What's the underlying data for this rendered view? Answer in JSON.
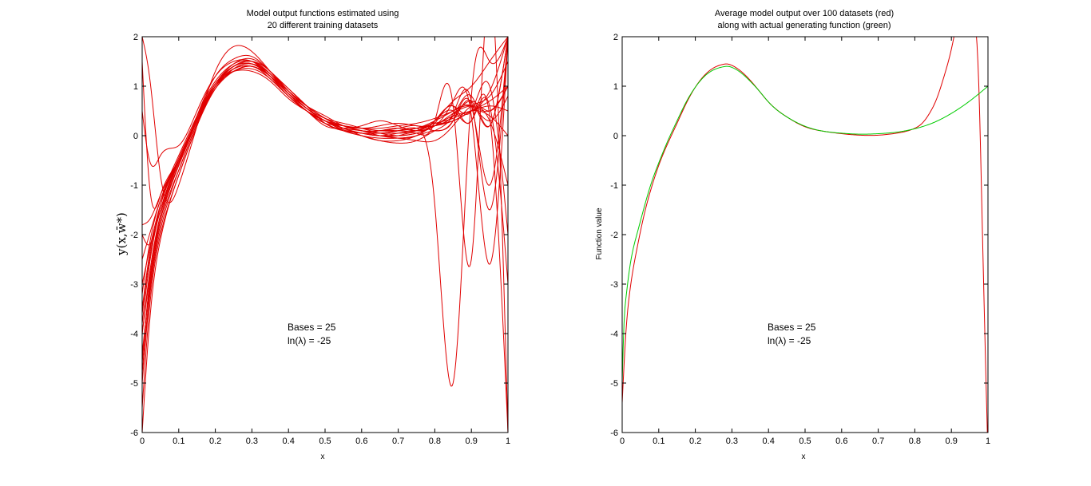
{
  "chart_data": [
    {
      "type": "line",
      "title": [
        "Model output functions estimated using",
        "20 different training datasets"
      ],
      "xlabel": "x",
      "ylabel": "y(x,w̄*)",
      "xlim": [
        0,
        1
      ],
      "ylim": [
        -6,
        2
      ],
      "xticks": [
        "0",
        "0.1",
        "0.2",
        "0.3",
        "0.4",
        "0.5",
        "0.6",
        "0.7",
        "0.8",
        "0.9",
        "1"
      ],
      "yticks": [
        "-6",
        "-5",
        "-4",
        "-3",
        "-2",
        "-1",
        "0",
        "1",
        "2"
      ],
      "annotations": [
        "Bases = 25",
        "ln(λ) = -25"
      ],
      "grid": false,
      "series_color": "#e00000",
      "base_curve": {
        "x": [
          0,
          0.02,
          0.05,
          0.1,
          0.15,
          0.2,
          0.25,
          0.3,
          0.35,
          0.4,
          0.45,
          0.5,
          0.55,
          0.6,
          0.65,
          0.7,
          0.75,
          0.8,
          0.85,
          0.9,
          0.95,
          1.0
        ],
        "y": [
          -4.2,
          -2.8,
          -1.6,
          -0.6,
          0.3,
          1.0,
          1.35,
          1.42,
          1.2,
          0.85,
          0.55,
          0.3,
          0.15,
          0.07,
          0.04,
          0.05,
          0.09,
          0.22,
          0.4,
          0.55,
          0.45,
          0.3
        ]
      },
      "series": [
        {
          "values": [
            -4.5,
            -3.0,
            -1.7,
            -0.6,
            0.4,
            1.1,
            1.45,
            1.5,
            1.25,
            0.9,
            0.55,
            0.3,
            0.12,
            0.05,
            0.0,
            0.0,
            0.05,
            0.3,
            0.6,
            -2.5,
            3.0,
            -6.0
          ]
        },
        {
          "values": [
            -3.8,
            -2.6,
            -1.5,
            -0.5,
            0.3,
            1.0,
            1.3,
            1.4,
            1.15,
            0.8,
            0.5,
            0.25,
            0.2,
            0.1,
            0.1,
            0.15,
            0.2,
            0.1,
            0.3,
            0.7,
            0.2,
            2.0
          ]
        },
        {
          "values": [
            -5.5,
            -3.5,
            -2.0,
            -0.8,
            0.2,
            1.0,
            1.4,
            1.5,
            1.3,
            0.9,
            0.6,
            0.35,
            0.2,
            0.1,
            0.0,
            -0.05,
            0.0,
            0.3,
            0.6,
            0.5,
            1.0,
            -2.0
          ]
        },
        {
          "values": [
            1.5,
            -1.0,
            -1.2,
            -0.5,
            0.4,
            1.2,
            1.55,
            1.6,
            1.3,
            0.95,
            0.6,
            0.25,
            0.1,
            0.05,
            0.05,
            0.1,
            0.15,
            -1.4,
            -5.0,
            0.8,
            1.5,
            2.0
          ]
        },
        {
          "values": [
            -3.2,
            -2.2,
            -1.3,
            -0.4,
            0.4,
            1.05,
            1.3,
            1.3,
            1.1,
            0.75,
            0.5,
            0.3,
            0.2,
            0.15,
            0.15,
            0.2,
            0.25,
            0.35,
            0.5,
            0.6,
            0.5,
            1.0
          ]
        },
        {
          "values": [
            -4.8,
            -3.2,
            -1.8,
            -0.7,
            0.25,
            0.95,
            1.35,
            1.45,
            1.25,
            0.85,
            0.5,
            0.25,
            0.1,
            0.0,
            -0.05,
            -0.05,
            0.0,
            0.1,
            0.3,
            0.6,
            -1.0,
            2.0
          ]
        },
        {
          "values": [
            0.5,
            -0.5,
            -0.4,
            -0.2,
            0.5,
            1.2,
            1.5,
            1.5,
            1.2,
            0.8,
            0.5,
            0.2,
            0.15,
            0.2,
            0.3,
            0.2,
            0.1,
            0.2,
            0.7,
            0.4,
            -2.6,
            2.0
          ]
        },
        {
          "values": [
            -4.0,
            -2.9,
            -1.6,
            -0.55,
            0.35,
            1.05,
            1.4,
            1.45,
            1.2,
            0.85,
            0.55,
            0.35,
            0.25,
            0.15,
            0.05,
            0.0,
            0.05,
            0.2,
            0.45,
            0.6,
            0.3,
            -1.0
          ]
        },
        {
          "values": [
            2.0,
            1.2,
            -0.8,
            -1.0,
            0.2,
            1.3,
            1.8,
            1.7,
            1.3,
            0.9,
            0.6,
            0.4,
            0.2,
            0.1,
            0.1,
            0.15,
            0.1,
            0.3,
            0.7,
            1.0,
            1.5,
            2.0
          ]
        },
        {
          "values": [
            -3.5,
            -2.4,
            -1.4,
            -0.45,
            0.35,
            1.0,
            1.3,
            1.35,
            1.15,
            0.8,
            0.5,
            0.3,
            0.1,
            0.0,
            -0.1,
            -0.15,
            -0.1,
            0.1,
            0.4,
            0.8,
            0.2,
            2.0
          ]
        },
        {
          "values": [
            -6.0,
            -3.8,
            -2.1,
            -0.8,
            0.2,
            0.95,
            1.35,
            1.45,
            1.2,
            0.8,
            0.5,
            0.3,
            0.15,
            0.1,
            0.05,
            0.1,
            0.15,
            0.25,
            0.35,
            0.5,
            0.4,
            0.0
          ]
        },
        {
          "values": [
            -4.4,
            -3.1,
            -1.7,
            -0.6,
            0.3,
            1.0,
            1.4,
            1.5,
            1.25,
            0.85,
            0.55,
            0.3,
            0.2,
            0.1,
            0.1,
            0.1,
            0.1,
            0.3,
            0.5,
            0.3,
            0.6,
            -3.0
          ]
        },
        {
          "values": [
            -1.8,
            -1.7,
            -1.2,
            -0.5,
            0.3,
            1.0,
            1.35,
            1.4,
            1.2,
            0.85,
            0.55,
            0.3,
            0.2,
            0.15,
            0.1,
            0.1,
            0.15,
            0.2,
            0.3,
            0.5,
            0.7,
            1.0
          ]
        },
        {
          "values": [
            -2.5,
            -2.0,
            -1.3,
            -0.5,
            0.35,
            1.0,
            1.3,
            1.4,
            1.2,
            0.85,
            0.55,
            0.3,
            0.15,
            0.05,
            0.0,
            -0.05,
            -0.1,
            -0.1,
            0.2,
            0.6,
            0.8,
            1.5
          ]
        },
        {
          "values": [
            -4.0,
            -2.8,
            -1.6,
            -0.55,
            0.3,
            1.0,
            1.4,
            1.45,
            1.25,
            0.9,
            0.6,
            0.35,
            0.2,
            0.1,
            0.05,
            0.05,
            0.1,
            0.25,
            0.45,
            0.7,
            -1.5,
            2.0
          ]
        },
        {
          "values": [
            -3.0,
            -2.3,
            -1.4,
            -0.5,
            0.3,
            0.95,
            1.3,
            1.4,
            1.2,
            0.9,
            0.6,
            0.35,
            0.15,
            0.05,
            0.0,
            0.0,
            0.05,
            0.2,
            0.4,
            0.5,
            0.6,
            0.5
          ]
        },
        {
          "values": [
            -5.0,
            -3.3,
            -1.9,
            -0.7,
            0.25,
            1.0,
            1.4,
            1.5,
            1.3,
            0.9,
            0.55,
            0.3,
            0.15,
            0.05,
            0.0,
            0.05,
            0.1,
            0.25,
            0.6,
            0.3,
            0.4,
            -6.0
          ]
        },
        {
          "values": [
            -3.6,
            -2.5,
            -1.5,
            -0.5,
            0.35,
            1.05,
            1.4,
            1.45,
            1.2,
            0.85,
            0.5,
            0.3,
            0.2,
            0.15,
            0.2,
            0.25,
            0.2,
            0.2,
            0.4,
            0.7,
            0.5,
            1.0
          ]
        },
        {
          "values": [
            -4.6,
            -3.0,
            -1.7,
            -0.6,
            0.3,
            1.0,
            1.35,
            1.4,
            1.2,
            0.85,
            0.55,
            0.3,
            0.15,
            0.0,
            -0.1,
            -0.1,
            0.0,
            0.2,
            0.3,
            0.5,
            0.9,
            2.0
          ]
        },
        {
          "values": [
            -2.0,
            -2.2,
            -1.4,
            -0.5,
            0.35,
            1.05,
            1.45,
            1.55,
            1.3,
            0.95,
            0.6,
            0.35,
            0.2,
            0.1,
            0.05,
            0.1,
            0.15,
            0.3,
            0.5,
            0.6,
            0.3,
            0.8
          ]
        }
      ]
    },
    {
      "type": "line",
      "title": [
        "Average model output over 100 datasets (red)",
        "along with actual generating function (green)"
      ],
      "xlabel": "x",
      "ylabel": "Function value",
      "xlim": [
        0,
        1
      ],
      "ylim": [
        -6,
        2
      ],
      "xticks": [
        "0",
        "0.1",
        "0.2",
        "0.3",
        "0.4",
        "0.5",
        "0.6",
        "0.7",
        "0.8",
        "0.9",
        "1"
      ],
      "yticks": [
        "-6",
        "-5",
        "-4",
        "-3",
        "-2",
        "-1",
        "0",
        "1",
        "2"
      ],
      "annotations": [
        "Bases = 25",
        "ln(λ) = -25"
      ],
      "grid": false,
      "series": [
        {
          "color": "#e00000",
          "x": [
            0,
            0.01,
            0.02,
            0.04,
            0.06,
            0.08,
            0.1,
            0.125,
            0.15,
            0.175,
            0.2,
            0.225,
            0.25,
            0.275,
            0.285,
            0.3,
            0.325,
            0.35,
            0.375,
            0.4,
            0.45,
            0.5,
            0.55,
            0.6,
            0.65,
            0.7,
            0.75,
            0.8,
            0.82,
            0.84,
            0.86,
            0.88,
            0.9,
            0.92,
            0.94,
            0.96,
            0.975,
            0.985,
            1.0
          ],
          "y": [
            -5.4,
            -4.0,
            -3.2,
            -2.3,
            -1.6,
            -1.05,
            -0.6,
            -0.15,
            0.25,
            0.65,
            0.98,
            1.22,
            1.37,
            1.44,
            1.45,
            1.42,
            1.3,
            1.12,
            0.9,
            0.68,
            0.38,
            0.18,
            0.09,
            0.04,
            0.01,
            0.01,
            0.05,
            0.15,
            0.25,
            0.45,
            0.75,
            1.2,
            1.75,
            2.5,
            3.0,
            2.5,
            1.0,
            -2.0,
            -6.5
          ]
        },
        {
          "color": "#00cc00",
          "x": [
            0,
            0.005,
            0.01,
            0.02,
            0.04,
            0.06,
            0.08,
            0.1,
            0.125,
            0.15,
            0.175,
            0.2,
            0.225,
            0.25,
            0.275,
            0.29,
            0.3,
            0.325,
            0.35,
            0.375,
            0.4,
            0.45,
            0.5,
            0.55,
            0.6,
            0.65,
            0.7,
            0.75,
            0.8,
            0.85,
            0.9,
            0.95,
            1.0
          ],
          "y": [
            -5.0,
            -3.8,
            -3.3,
            -2.7,
            -2.0,
            -1.45,
            -0.95,
            -0.55,
            -0.1,
            0.3,
            0.68,
            0.98,
            1.2,
            1.33,
            1.39,
            1.4,
            1.38,
            1.27,
            1.1,
            0.9,
            0.68,
            0.38,
            0.19,
            0.09,
            0.05,
            0.03,
            0.04,
            0.07,
            0.14,
            0.26,
            0.45,
            0.7,
            1.0
          ]
        }
      ]
    }
  ]
}
